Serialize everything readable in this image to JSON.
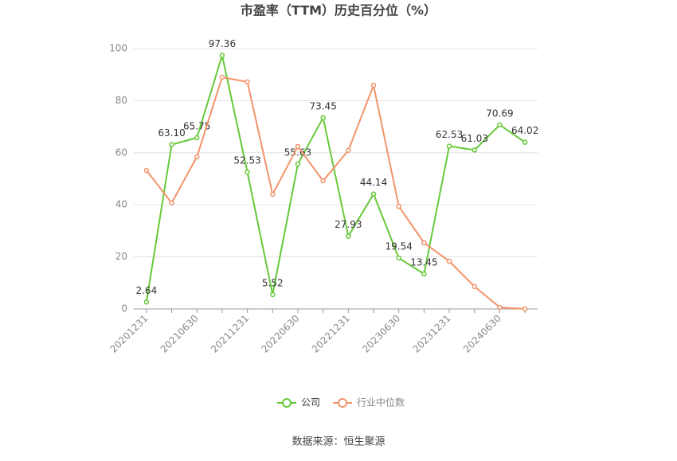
{
  "chart_data": {
    "type": "line",
    "title": "市盈率（TTM）历史百分位（%）",
    "source": "数据来源：恒生聚源",
    "categories": [
      "20201231",
      null,
      "20210630",
      null,
      "20211231",
      null,
      "20220630",
      null,
      "20221231",
      null,
      "20230630",
      null,
      "20231231",
      null,
      "20240630",
      null
    ],
    "series": [
      {
        "name": "公司",
        "color": "#66c93a",
        "values": [
          2.64,
          63.1,
          65.75,
          97.36,
          52.53,
          5.52,
          55.63,
          73.45,
          27.93,
          44.14,
          19.54,
          13.45,
          62.53,
          61.03,
          70.69,
          64.02
        ],
        "value_labels": [
          "2.64",
          "63.10",
          "65.75",
          "97.36",
          "52.53",
          "5.52",
          "55.63",
          "73.45",
          "27.93",
          "44.14",
          "19.54",
          "13.45",
          "62.53",
          "61.03",
          "70.69",
          "64.02"
        ]
      },
      {
        "name": "行业中位数",
        "color": "#f2946a",
        "values": [
          53.2,
          40.7,
          58.4,
          89.0,
          87.2,
          44.0,
          62.4,
          49.2,
          60.9,
          85.9,
          39.4,
          25.4,
          18.3,
          8.6,
          0.6,
          0
        ]
      }
    ],
    "ylim": [
      0,
      100
    ],
    "yticks": [
      0,
      20,
      40,
      60,
      80,
      100
    ],
    "grid": true,
    "legend": "bottom"
  }
}
